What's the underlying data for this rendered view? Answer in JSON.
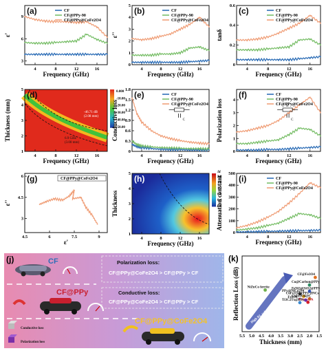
{
  "colors": {
    "cf": "#2f6fb7",
    "cfppy": "#7abf6a",
    "cfppy_cofe": "#f0a07a",
    "red": "#c0102a",
    "arrow": "#4a5db5"
  },
  "legend": {
    "cf": "CF",
    "cfppy": "CF@PPy-90",
    "cfppy_cofe": "CF@PPy@CoFe2O4"
  },
  "legend_cofe_base": "CF@PPy@CoFe",
  "legend_cofe_sub2": "2",
  "legend_cofe_o": "O",
  "legend_cofe_sub4": "4",
  "freq_label": "Frequency (GHz)",
  "chart_data": [
    {
      "id": "a",
      "panel_label": "(a)",
      "type": "line",
      "ylabel": "ε'",
      "xlabel": "Frequency (GHz)",
      "xlim": [
        2,
        18
      ],
      "ylim": [
        2.5,
        10.5
      ],
      "xticks": [
        4,
        8,
        12,
        16
      ],
      "yticks": [
        3,
        6,
        9
      ],
      "series": [
        {
          "name": "CF",
          "x": [
            2,
            4,
            6,
            8,
            10,
            12,
            14,
            16,
            18
          ],
          "values": [
            3.9,
            3.9,
            3.9,
            3.9,
            3.9,
            3.9,
            3.9,
            3.9,
            3.9
          ]
        },
        {
          "name": "CF@PPy-90",
          "x": [
            2,
            4,
            6,
            8,
            10,
            12,
            14,
            16,
            18
          ],
          "values": [
            5.5,
            5.4,
            5.4,
            5.5,
            5.6,
            5.7,
            6.6,
            5.9,
            5.4
          ]
        },
        {
          "name": "CF@PPy@CoFe2O4",
          "x": [
            2,
            4,
            6,
            8,
            10,
            12,
            14,
            16,
            18
          ],
          "values": [
            9.0,
            8.6,
            8.4,
            8.3,
            8.3,
            8.2,
            8.3,
            7.6,
            6.2
          ]
        }
      ]
    },
    {
      "id": "b",
      "panel_label": "(b)",
      "type": "line",
      "ylabel": "ε''",
      "xlabel": "Frequency (GHz)",
      "xlim": [
        2,
        18
      ],
      "ylim": [
        0,
        5
      ],
      "xticks": [
        4,
        8,
        12,
        16
      ],
      "yticks": [
        0,
        1,
        2,
        3,
        4,
        5
      ],
      "series": [
        {
          "name": "CF",
          "x": [
            2,
            4,
            6,
            8,
            10,
            12,
            14,
            16,
            18
          ],
          "values": [
            0.2,
            0.2,
            0.2,
            0.2,
            0.2,
            0.2,
            0.25,
            0.3,
            0.35
          ]
        },
        {
          "name": "CF@PPy-90",
          "x": [
            2,
            4,
            6,
            8,
            10,
            12,
            14,
            16,
            18
          ],
          "values": [
            0.8,
            0.8,
            0.8,
            0.9,
            0.9,
            1.0,
            1.4,
            1.5,
            1.2
          ]
        },
        {
          "name": "CF@PPy@CoFe2O4",
          "x": [
            2,
            4,
            6,
            8,
            10,
            12,
            14,
            16,
            18
          ],
          "values": [
            2.2,
            2.1,
            2.2,
            2.4,
            2.6,
            3.0,
            3.4,
            4.0,
            3.2
          ]
        }
      ]
    },
    {
      "id": "c",
      "panel_label": "(c)",
      "type": "line",
      "ylabel": "tanδ",
      "xlabel": "Frequency (GHz)",
      "xlim": [
        2,
        18
      ],
      "ylim": [
        0,
        0.6
      ],
      "xticks": [
        4,
        8,
        12,
        16
      ],
      "yticks": [
        0.0,
        0.2,
        0.4,
        0.6
      ],
      "series": [
        {
          "name": "CF",
          "x": [
            2,
            4,
            6,
            8,
            10,
            12,
            14,
            16,
            18
          ],
          "values": [
            0.05,
            0.05,
            0.05,
            0.05,
            0.05,
            0.05,
            0.06,
            0.07,
            0.08
          ]
        },
        {
          "name": "CF@PPy-90",
          "x": [
            2,
            4,
            6,
            8,
            10,
            12,
            14,
            16,
            18
          ],
          "values": [
            0.15,
            0.15,
            0.15,
            0.16,
            0.17,
            0.18,
            0.25,
            0.26,
            0.2
          ]
        },
        {
          "name": "CF@PPy@CoFe2O4",
          "x": [
            2,
            4,
            6,
            8,
            10,
            12,
            14,
            16,
            18
          ],
          "values": [
            0.25,
            0.25,
            0.26,
            0.28,
            0.32,
            0.37,
            0.42,
            0.5,
            0.42
          ]
        }
      ]
    },
    {
      "id": "d",
      "panel_label": "(d)",
      "type": "heatmap",
      "ylabel": "Thickness (mm)",
      "xlabel": "Frequency (GHz)",
      "xlim": [
        2,
        18
      ],
      "ylim": [
        1,
        5
      ],
      "xticks": [
        4,
        8,
        12,
        16
      ],
      "yticks": [
        1,
        2,
        3,
        4,
        5
      ],
      "colorbar_ticks": [
        "0.000",
        "-10.00",
        "-20.00",
        "-30.00",
        "-40.00",
        "-50.00"
      ],
      "annotations": [
        "-46.71 dB",
        "(2.08 mm)",
        "6.9 GHz",
        "(3.00 mm)"
      ]
    },
    {
      "id": "e",
      "panel_label": "(e)",
      "type": "line",
      "ylabel": "Conductive loss",
      "xlabel": "Frequency (GHz)",
      "xlim": [
        2,
        18
      ],
      "ylim": [
        0,
        1.8
      ],
      "xticks": [
        4,
        8,
        12,
        16
      ],
      "yticks": [
        0.0,
        0.3,
        0.6,
        0.9,
        1.2,
        1.5,
        1.8
      ],
      "circuit_labels": [
        "R",
        "C"
      ],
      "series": [
        {
          "name": "CF",
          "x": [
            2,
            3,
            4,
            6,
            8,
            10,
            12,
            14,
            16,
            18
          ],
          "values": [
            0.2,
            0.14,
            0.11,
            0.08,
            0.06,
            0.05,
            0.05,
            0.04,
            0.04,
            0.04
          ]
        },
        {
          "name": "CF@PPy-90",
          "x": [
            2,
            3,
            4,
            6,
            8,
            10,
            12,
            14,
            16,
            18
          ],
          "values": [
            0.3,
            0.2,
            0.16,
            0.13,
            0.11,
            0.1,
            0.09,
            0.08,
            0.08,
            0.07
          ]
        },
        {
          "name": "CF@PPy@CoFe2O4",
          "x": [
            2,
            3,
            4,
            6,
            8,
            10,
            12,
            14,
            16,
            18
          ],
          "values": [
            1.55,
            1.1,
            0.85,
            0.6,
            0.45,
            0.37,
            0.31,
            0.27,
            0.24,
            0.22
          ]
        }
      ]
    },
    {
      "id": "f",
      "panel_label": "(f)",
      "type": "line",
      "ylabel": "Polarization loss",
      "xlabel": "Frequency (GHz)",
      "xlim": [
        2,
        18
      ],
      "ylim": [
        0,
        4.8
      ],
      "xticks": [
        4,
        8,
        12,
        16
      ],
      "yticks": [
        0,
        1,
        2,
        3,
        4
      ],
      "circuit_labels": [
        "R",
        "C"
      ],
      "series": [
        {
          "name": "CF",
          "x": [
            2,
            4,
            6,
            8,
            10,
            12,
            14,
            16,
            18
          ],
          "values": [
            0.1,
            0.1,
            0.1,
            0.15,
            0.15,
            0.2,
            0.25,
            0.3,
            0.35
          ]
        },
        {
          "name": "CF@PPy-90",
          "x": [
            2,
            4,
            6,
            8,
            10,
            12,
            14,
            16,
            18
          ],
          "values": [
            0.6,
            0.6,
            0.7,
            0.8,
            0.9,
            1.3,
            1.8,
            1.7,
            1.2
          ]
        },
        {
          "name": "CF@PPy@CoFe2O4",
          "x": [
            2,
            4,
            6,
            8,
            10,
            12,
            14,
            16,
            18
          ],
          "values": [
            1.5,
            1.6,
            1.8,
            2.0,
            2.4,
            3.0,
            3.6,
            4.2,
            3.0
          ]
        }
      ]
    },
    {
      "id": "g",
      "panel_label": "(g)",
      "type": "line",
      "ylabel": "ε''",
      "xlabel": "ε'",
      "xlim": [
        4.5,
        9.5
      ],
      "ylim": [
        2,
        6.2
      ],
      "xticks": [
        4.5,
        6.0,
        7.5,
        9.0
      ],
      "yticks": [
        3.0,
        4.5,
        6.0
      ],
      "series": [
        {
          "name": "CF@PPy@CoFe2O4",
          "x": [
            5.4,
            5.8,
            6.3,
            6.8,
            7.2,
            7.5,
            7.4,
            7.9,
            8.2,
            8.6,
            8.9
          ],
          "values": [
            4.0,
            4.2,
            4.4,
            4.3,
            4.6,
            5.0,
            4.4,
            4.5,
            3.8,
            3.2,
            2.6
          ]
        }
      ]
    },
    {
      "id": "h",
      "panel_label": "(h)",
      "type": "heatmap",
      "ylabel": "Thickness",
      "xlabel": "Frequency (GHz)",
      "xlim": [
        2,
        18
      ],
      "ylim": [
        1,
        5
      ],
      "xticks": [
        4,
        8,
        12,
        16
      ],
      "yticks": [
        1,
        2,
        3,
        4,
        5
      ],
      "colorbar_title": "Δf",
      "colorbar_ticks": [
        "2.0",
        "1.8",
        "1.6",
        "1.4",
        "1.2",
        "1.0",
        "0.8",
        "0.6",
        "0.4",
        "0.2",
        "0.0"
      ]
    },
    {
      "id": "i",
      "panel_label": "(i)",
      "type": "line",
      "ylabel": "Attenuation constant",
      "xlabel": "Frequency (GHz)",
      "xlim": [
        2,
        18
      ],
      "ylim": [
        0,
        500
      ],
      "xticks": [
        4,
        8,
        12,
        16
      ],
      "yticks": [
        0,
        100,
        200,
        300,
        400,
        500
      ],
      "series": [
        {
          "name": "CF",
          "x": [
            2,
            4,
            6,
            8,
            10,
            12,
            14,
            16,
            18
          ],
          "values": [
            5,
            6,
            8,
            10,
            12,
            14,
            16,
            18,
            20
          ]
        },
        {
          "name": "CF@PPy-90",
          "x": [
            2,
            4,
            6,
            8,
            10,
            12,
            14,
            16,
            18
          ],
          "values": [
            20,
            30,
            40,
            60,
            80,
            120,
            160,
            150,
            120
          ]
        },
        {
          "name": "CF@PPy@CoFe2O4",
          "x": [
            2,
            4,
            6,
            8,
            10,
            12,
            14,
            16,
            18
          ],
          "values": [
            40,
            60,
            90,
            130,
            180,
            250,
            330,
            420,
            380
          ]
        }
      ]
    },
    {
      "id": "k",
      "panel_label": "(k)",
      "type": "scatter",
      "ylabel": "Reflection Loss (dB)",
      "xlabel": "Thickness (mm)",
      "xlim": [
        5.5,
        1.5
      ],
      "ylim": [
        -70,
        -10
      ],
      "xticks": [
        5.5,
        5.0,
        4.5,
        4.0,
        3.5,
        3.0,
        2.5,
        2.0,
        1.5
      ],
      "yticks": [
        -10,
        -20,
        -30,
        -40,
        -50,
        -60,
        -70
      ],
      "annotation": "High RL value with thin thickness",
      "points": [
        {
          "label": "This work",
          "x": 2.08,
          "y": -46.7
        },
        {
          "label": "Ti3C2Tx@PPy",
          "x": 2.5,
          "y": -47
        },
        {
          "label": "Fe3O4",
          "x": 2.2,
          "y": -45
        },
        {
          "label": "CoFe2O4@PPy HNCs",
          "x": 2.3,
          "y": -42
        },
        {
          "label": "NiZnCo ferrite",
          "x": 4.3,
          "y": -37
        },
        {
          "label": "PPy@NiCo2S4",
          "x": 2.5,
          "y": -40
        },
        {
          "label": "CoFe2O4@C",
          "x": 2.0,
          "y": -44
        },
        {
          "label": "FeNi3@SiO2@PPy",
          "x": 2.0,
          "y": -38
        },
        {
          "label": "Cu@Carbon@PPy",
          "x": 2.0,
          "y": -33
        },
        {
          "label": "CF@Fe3O4",
          "x": 1.7,
          "y": -27
        }
      ]
    }
  ],
  "panel_j": {
    "label": "(j)",
    "cf_title": "CF",
    "cfppy_title": "CF@PPy",
    "cofe_title": "CF@PPy@CoFe2O4",
    "polarization_title": "Polarization loss:",
    "polarization_rank": "CF@PPy@CoFe2O4 > CF@PPy > CF",
    "conductive_title": "Conductive loss:",
    "conductive_rank": "CF@PPy@CoFe2O4 > CF@PPy > CF",
    "legend_conductive": "Conductive loss",
    "legend_polarization": "Polarization loss"
  }
}
